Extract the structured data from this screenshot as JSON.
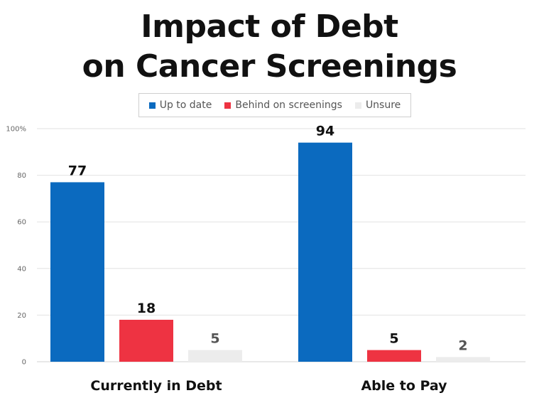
{
  "chart_data": {
    "type": "bar",
    "title": [
      "Impact of Debt",
      "on Cancer Screenings"
    ],
    "categories": [
      "Currently in Debt",
      "Able to Pay"
    ],
    "series": [
      {
        "name": "Up to date",
        "color": "#0b6abf",
        "label_color": "#111111",
        "values": [
          77,
          94
        ]
      },
      {
        "name": "Behind on screenings",
        "color": "#ee3342",
        "label_color": "#111111",
        "values": [
          18,
          5
        ]
      },
      {
        "name": "Unsure",
        "color": "#ececec",
        "label_color": "#555555",
        "values": [
          5,
          2
        ]
      }
    ],
    "y_ticks": [
      "0",
      "20",
      "40",
      "60",
      "80",
      "100%"
    ],
    "ylim": [
      0,
      100
    ],
    "grid": true,
    "legend_position": "top"
  }
}
